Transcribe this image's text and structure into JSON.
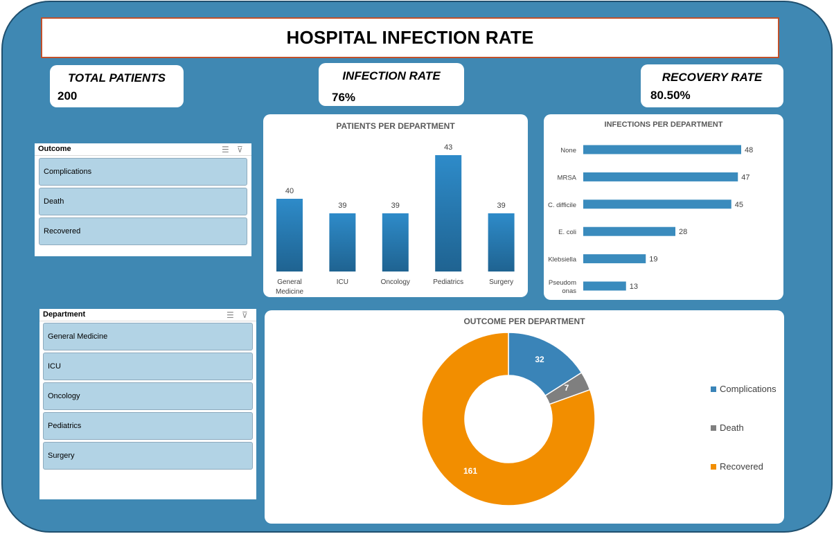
{
  "title": "HOSPITAL INFECTION RATE",
  "kpis": {
    "total_patients": {
      "label": "TOTAL PATIENTS",
      "value": "200"
    },
    "infection_rate": {
      "label": "INFECTION RATE",
      "value": "76%"
    },
    "recovery_rate": {
      "label": "RECOVERY RATE",
      "value": "80.50%"
    }
  },
  "slicers": {
    "outcome": {
      "header": "Outcome",
      "items": [
        "Complications",
        "Death",
        "Recovered"
      ]
    },
    "department": {
      "header": "Department",
      "items": [
        "General Medicine",
        "ICU",
        "Oncology",
        "Pediatrics",
        "Surgery"
      ]
    }
  },
  "icons": {
    "multiselect": "multi-select-icon",
    "clear_filter": "clear-filter-icon"
  },
  "colors": {
    "background": "#3f88b3",
    "bar": "#2e86c1",
    "bar_dark": "#1f6391",
    "hbar": "#3a8bbd",
    "complications": "#3a84b8",
    "death": "#7f7f7f",
    "recovered": "#f28e00"
  },
  "chart_data": [
    {
      "type": "bar",
      "title": "PATIENTS PER DEPARTMENT",
      "categories": [
        "General Medicine",
        "ICU",
        "Oncology",
        "Pediatrics",
        "Surgery"
      ],
      "category_lines": [
        [
          "General",
          "Medicine"
        ],
        [
          "ICU"
        ],
        [
          "Oncology"
        ],
        [
          "Pediatrics"
        ],
        [
          "Surgery"
        ]
      ],
      "values": [
        40,
        39,
        39,
        43,
        39
      ],
      "grid": false
    },
    {
      "type": "bar",
      "orientation": "horizontal",
      "title": "INFECTIONS PER DEPARTMENT",
      "categories": [
        "None",
        "MRSA",
        "C. difficile",
        "E. coli",
        "Klebsiella",
        "Pseudomonas"
      ],
      "category_lines": [
        [
          "None"
        ],
        [
          "MRSA"
        ],
        [
          "C. difficile"
        ],
        [
          "E. coli"
        ],
        [
          "Klebsiella"
        ],
        [
          "Pseudom",
          "onas"
        ]
      ],
      "values": [
        48,
        47,
        45,
        28,
        19,
        13
      ],
      "grid": false
    },
    {
      "type": "pie",
      "subtype": "donut",
      "title": "OUTCOME PER DEPARTMENT",
      "categories": [
        "Complications",
        "Death",
        "Recovered"
      ],
      "values": [
        32,
        7,
        161
      ],
      "legend": "right"
    }
  ]
}
